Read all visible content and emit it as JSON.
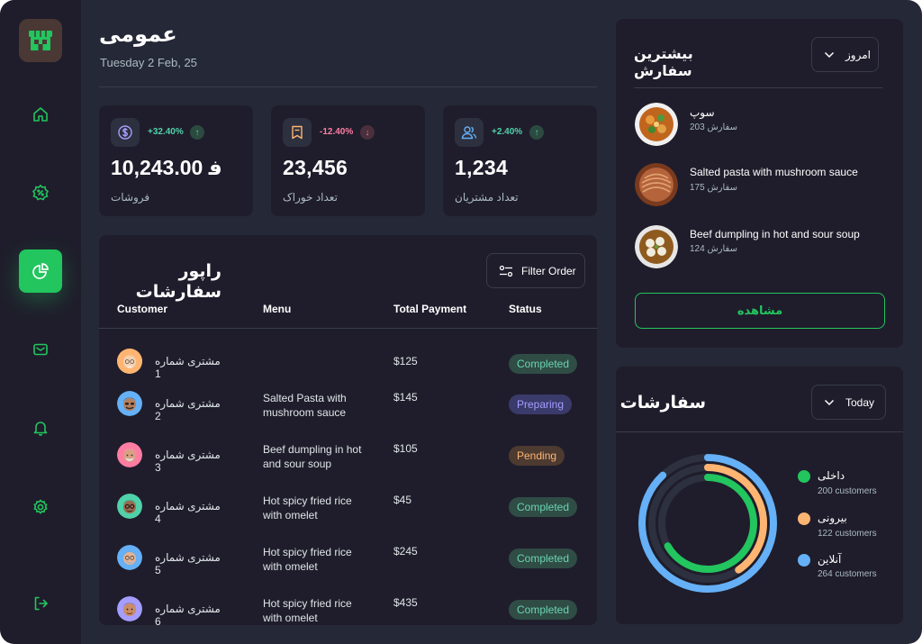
{
  "header": {
    "title": "عمومی",
    "date": "Tuesday 2 Feb, 25"
  },
  "colors": {
    "accent": "#22c55e",
    "bg": "#252836",
    "panel": "#1f1d2b",
    "orange": "#ffb572",
    "blue": "#65b0f6",
    "green": "#22c55e"
  },
  "sidebar": {
    "logo": "store-icon",
    "items": [
      {
        "name": "home-icon"
      },
      {
        "name": "discount-icon"
      },
      {
        "name": "chart-pie-icon",
        "active": true
      },
      {
        "name": "mail-icon"
      },
      {
        "name": "bell-icon"
      },
      {
        "name": "settings-icon"
      },
      {
        "name": "logout-icon"
      }
    ]
  },
  "stats": [
    {
      "icon": "dollar-icon",
      "change": "+32.40%",
      "trend": "up",
      "value": "10,243.00 ﻓ",
      "label": "فروشات"
    },
    {
      "icon": "bookmark-icon",
      "change": "-12.40%",
      "trend": "down",
      "value": "23,456",
      "label": "تعداد خوراک"
    },
    {
      "icon": "users-icon",
      "change": "+2.40%",
      "trend": "up",
      "value": "1,234",
      "label": "تعداد مشتریان"
    }
  ],
  "report": {
    "title": "راپور سفارشات",
    "filter_label": "Filter Order",
    "columns": [
      "Customer",
      "Menu",
      "Total Payment",
      "Status"
    ],
    "rows": [
      {
        "customer": "مشتری شماره 1",
        "menu_line1": "",
        "menu_line2": "",
        "payment": "$125",
        "status": "Completed",
        "status_type": "completed"
      },
      {
        "customer": "مشتری شماره 2",
        "menu_line1": "Salted Pasta with",
        "menu_line2": "mushroom sauce",
        "payment": "$145",
        "status": "Preparing",
        "status_type": "preparing"
      },
      {
        "customer": "مشتری شماره 3",
        "menu_line1": "Beef dumpling in hot",
        "menu_line2": "and sour soup",
        "payment": "$105",
        "status": "Pending",
        "status_type": "pending"
      },
      {
        "customer": "مشتری شماره 4",
        "menu_line1": "Hot spicy fried rice",
        "menu_line2": "with omelet",
        "payment": "$45",
        "status": "Completed",
        "status_type": "completed"
      },
      {
        "customer": "مشتری شماره 5",
        "menu_line1": "Hot spicy fried rice",
        "menu_line2": "with omelet",
        "payment": "$245",
        "status": "Completed",
        "status_type": "completed"
      },
      {
        "customer": "مشتری شماره 6",
        "menu_line1": "Hot spicy fried rice",
        "menu_line2": "with omelet",
        "payment": "$435",
        "status": "Completed",
        "status_type": "completed"
      }
    ]
  },
  "top_orders": {
    "title_line1": "بیشترین",
    "title_line2": "سفارش",
    "period": "امروز",
    "items": [
      {
        "name": "سوپ",
        "count": "203 سفارش"
      },
      {
        "name": "Salted pasta with mushroom sauce",
        "count": "175 سفارش"
      },
      {
        "name": "Beef dumpling in hot and sour soup",
        "count": "124 سفارش"
      }
    ],
    "view_label": "مشاهده"
  },
  "orders": {
    "title": "سفارشات",
    "period": "Today",
    "legend": [
      {
        "name": "داخلی",
        "count": "200 customers",
        "color": "#22c55e",
        "value": 200
      },
      {
        "name": "بیرونی",
        "count": "122 customers",
        "color": "#ffb572",
        "value": 122
      },
      {
        "name": "آنلاین",
        "count": "264 customers",
        "color": "#65b0f6",
        "value": 264
      }
    ]
  }
}
